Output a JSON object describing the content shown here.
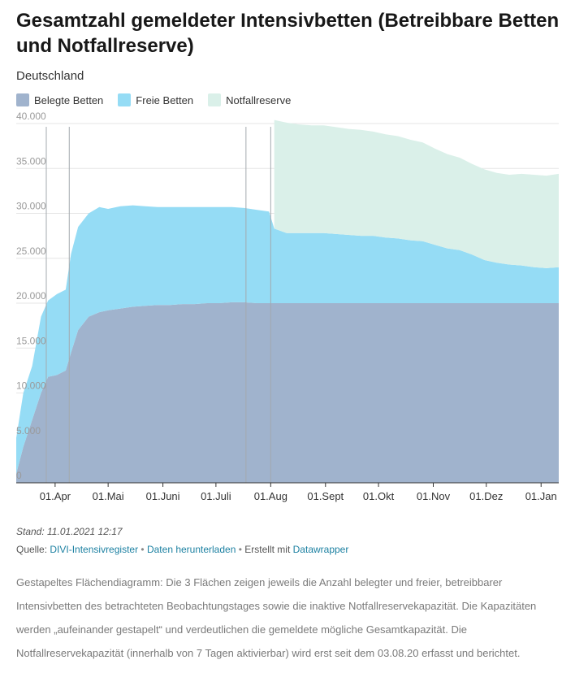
{
  "header": {
    "title": "Gesamtzahl gemeldeter Intensivbetten (Betreibbare Betten und Notfallreserve)",
    "subtitle": "Deutschland"
  },
  "legend": [
    {
      "label": "Belegte Betten",
      "color": "#a0b3cd"
    },
    {
      "label": "Freie Betten",
      "color": "#95dcf5"
    },
    {
      "label": "Notfallreserve",
      "color": "#daf0e9"
    }
  ],
  "footer": {
    "stand": "Stand: 11.01.2021 12:17",
    "source_prefix": "Quelle:",
    "source_link": "DIVI-Intensivregister",
    "download_link": "Daten herunterladen",
    "created_prefix": "Erstellt mit",
    "created_link": "Datawrapper",
    "bullet": "•"
  },
  "description": "Gestapeltes Flächendiagramm: Die 3 Flächen zeigen jeweils die Anzahl belegter und freier, betreibbarer Intensivbetten des betrachteten Beobachtungstages sowie die inaktive Notfallreservekapazität. Die Kapazitäten werden „aufeinander gestapelt“ und verdeutlichen die gemeldete mögliche Gesamtkapazität. Die Notfallreservekapazität (innerhalb von 7 Tagen aktivierbar) wird erst seit dem 03.08.20 erfasst und berichtet.",
  "chart_data": {
    "type": "area",
    "stacked": true,
    "title": "Gesamtzahl gemeldeter Intensivbetten (Betreibbare Betten und Notfallreserve)",
    "subtitle": "Deutschland",
    "xlabel": "",
    "ylabel": "",
    "x_range": [
      "2020-03-10",
      "2021-01-11"
    ],
    "ylim": [
      0,
      40000
    ],
    "y_ticks": [
      0,
      5000,
      10000,
      15000,
      20000,
      25000,
      30000,
      35000,
      40000
    ],
    "y_tick_labels": [
      "0",
      "5.000",
      "10.000",
      "15.000",
      "20.000",
      "25.000",
      "30.000",
      "35.000",
      "40.000"
    ],
    "x_ticks": [
      {
        "date": "2020-04-01",
        "label": "01.Apr"
      },
      {
        "date": "2020-05-01",
        "label": "01.Mai"
      },
      {
        "date": "2020-06-01",
        "label": "01.Juni"
      },
      {
        "date": "2020-07-01",
        "label": "01.Juli"
      },
      {
        "date": "2020-08-01",
        "label": "01.Aug"
      },
      {
        "date": "2020-09-01",
        "label": "01.Sept"
      },
      {
        "date": "2020-10-01",
        "label": "01.Okt"
      },
      {
        "date": "2020-11-01",
        "label": "01.Nov"
      },
      {
        "date": "2020-12-01",
        "label": "01.Dez"
      },
      {
        "date": "2021-01-01",
        "label": "01.Jan"
      }
    ],
    "grid": true,
    "legend_position": "top-left",
    "reference_lines": [
      "2020-03-27",
      "2020-04-09",
      "2020-07-18",
      "2020-08-01"
    ],
    "x": [
      "2020-03-10",
      "2020-03-14",
      "2020-03-19",
      "2020-03-24",
      "2020-03-28",
      "2020-04-02",
      "2020-04-07",
      "2020-04-10",
      "2020-04-14",
      "2020-04-20",
      "2020-04-26",
      "2020-05-01",
      "2020-05-08",
      "2020-05-15",
      "2020-05-22",
      "2020-05-29",
      "2020-06-05",
      "2020-06-12",
      "2020-06-19",
      "2020-06-26",
      "2020-07-03",
      "2020-07-10",
      "2020-07-17",
      "2020-07-24",
      "2020-07-31",
      "2020-08-03",
      "2020-08-10",
      "2020-08-17",
      "2020-08-24",
      "2020-08-31",
      "2020-09-07",
      "2020-09-14",
      "2020-09-21",
      "2020-09-28",
      "2020-10-05",
      "2020-10-12",
      "2020-10-19",
      "2020-10-26",
      "2020-11-02",
      "2020-11-09",
      "2020-11-16",
      "2020-11-23",
      "2020-11-30",
      "2020-12-07",
      "2020-12-14",
      "2020-12-21",
      "2020-12-28",
      "2021-01-04",
      "2021-01-11"
    ],
    "series": [
      {
        "name": "Belegte Betten",
        "color": "#a0b3cd",
        "values": [
          1000,
          4000,
          7000,
          10000,
          11800,
          12000,
          12500,
          14500,
          17000,
          18500,
          19000,
          19200,
          19400,
          19600,
          19700,
          19800,
          19800,
          19900,
          19900,
          20000,
          20000,
          20100,
          20100,
          20000,
          20000,
          20000,
          20000,
          20000,
          20000,
          20000,
          20000,
          20000,
          20000,
          20000,
          20000,
          20000,
          20000,
          20000,
          20000,
          20000,
          20000,
          20000,
          20000,
          20000,
          20000,
          20000,
          20000,
          20000,
          20000
        ]
      },
      {
        "name": "Freie Betten",
        "color": "#95dcf5",
        "values": [
          4000,
          6000,
          6000,
          8500,
          8500,
          9000,
          9000,
          11000,
          11500,
          11500,
          11700,
          11300,
          11400,
          11300,
          11100,
          10900,
          10900,
          10800,
          10800,
          10700,
          10700,
          10600,
          10500,
          10400,
          10200,
          8300,
          7800,
          7800,
          7800,
          7800,
          7700,
          7600,
          7500,
          7500,
          7300,
          7200,
          7000,
          6900,
          6500,
          6100,
          5900,
          5400,
          4800,
          4500,
          4300,
          4200,
          4000,
          3900,
          4000
        ]
      },
      {
        "name": "Notfallreserve",
        "color": "#daf0e9",
        "values": [
          0,
          0,
          0,
          0,
          0,
          0,
          0,
          0,
          0,
          0,
          0,
          0,
          0,
          0,
          0,
          0,
          0,
          0,
          0,
          0,
          0,
          0,
          0,
          0,
          0,
          12100,
          12300,
          12100,
          12000,
          12000,
          11900,
          11800,
          11800,
          11600,
          11500,
          11400,
          11200,
          11000,
          10700,
          10500,
          10300,
          10100,
          10100,
          10000,
          10000,
          10200,
          10300,
          10300,
          10400
        ]
      }
    ]
  }
}
